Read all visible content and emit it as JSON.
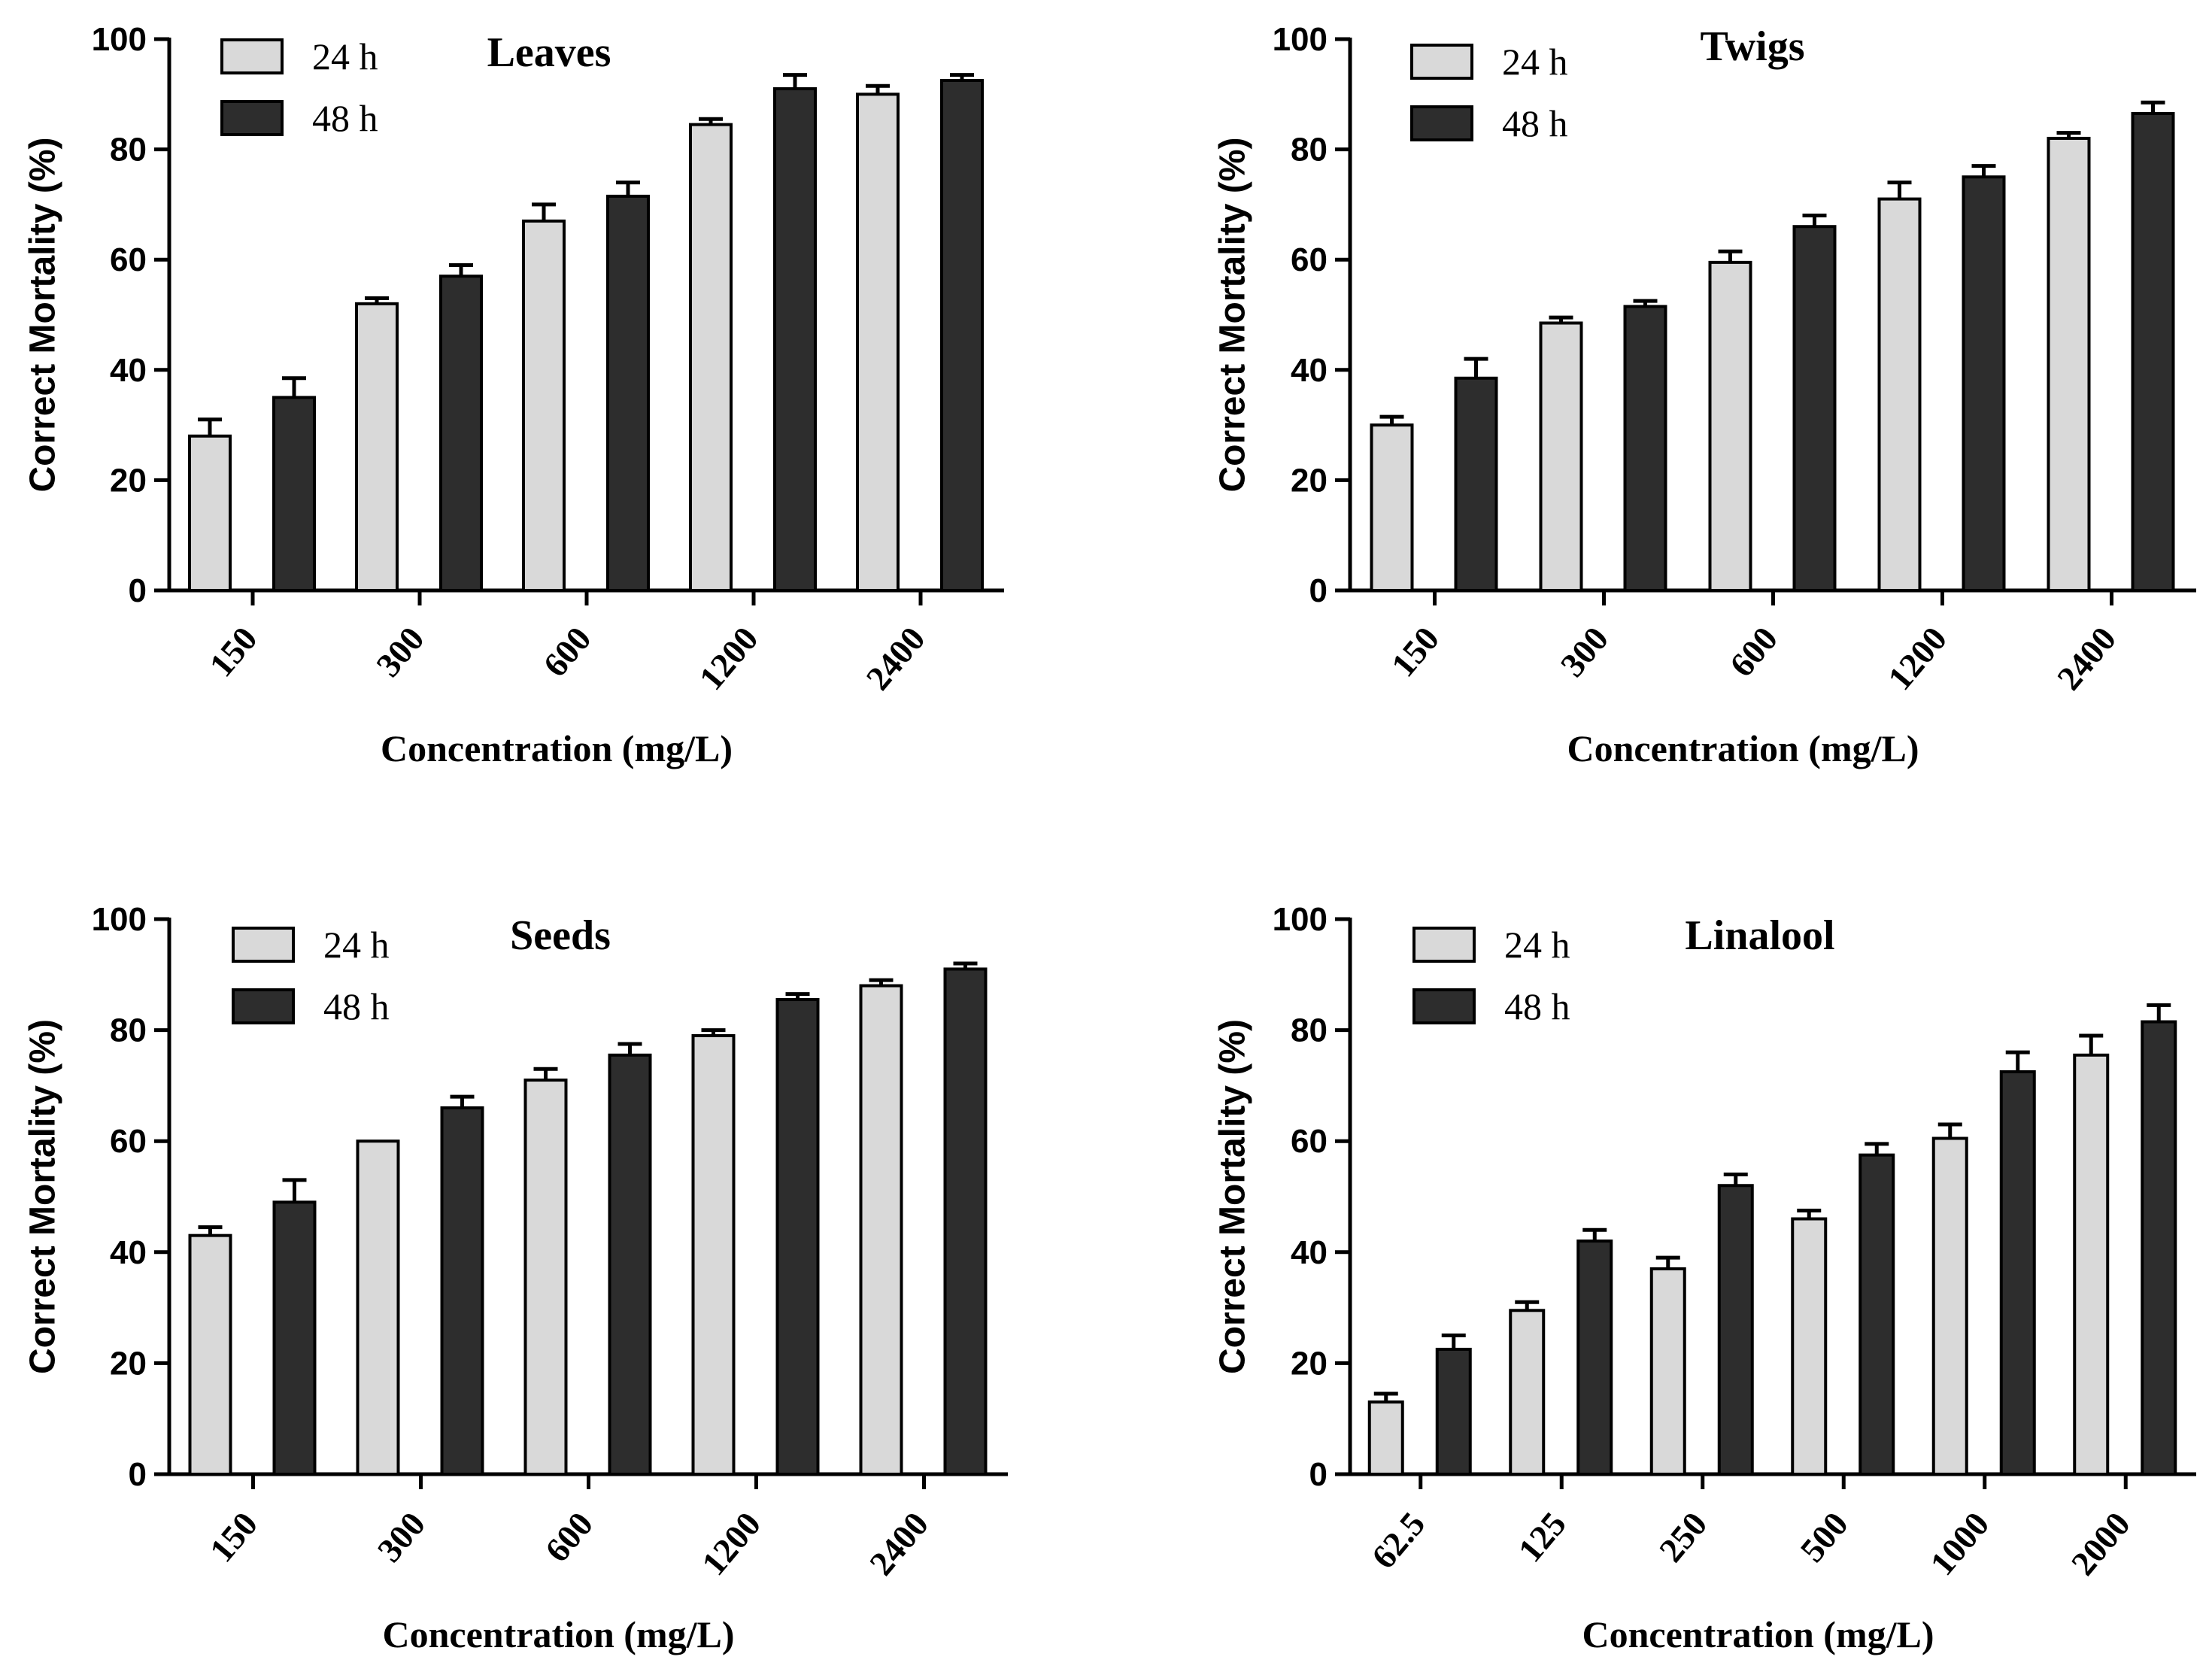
{
  "colors": {
    "series_24h": "#d9d9d9",
    "series_48h": "#2d2d2d",
    "axis": "#000000"
  },
  "chart_data": [
    {
      "type": "bar",
      "title": "Leaves",
      "xlabel": "Concentration (mg/L)",
      "ylabel": "Correct Mortality (%)",
      "ylim": [
        0,
        100
      ],
      "yticks": [
        "0",
        "20",
        "40",
        "60",
        "80",
        "100"
      ],
      "legend_position": "top-left",
      "categories": [
        "150",
        "300",
        "600",
        "1200",
        "2400"
      ],
      "series": [
        {
          "name": "24 h",
          "values": [
            28,
            52,
            67,
            84.5,
            90
          ],
          "errors": [
            3,
            1,
            3,
            1,
            1.5
          ]
        },
        {
          "name": "48 h",
          "values": [
            35,
            57,
            71.5,
            91,
            92.5
          ],
          "errors": [
            3.5,
            2,
            2.5,
            2.5,
            1
          ]
        }
      ]
    },
    {
      "type": "bar",
      "title": "Twigs",
      "xlabel": "Concentration (mg/L)",
      "ylabel": "Correct Mortality (%)",
      "ylim": [
        0,
        100
      ],
      "yticks": [
        "0",
        "20",
        "40",
        "60",
        "80",
        "100"
      ],
      "legend_position": "top-left",
      "categories": [
        "150",
        "300",
        "600",
        "1200",
        "2400"
      ],
      "series": [
        {
          "name": "24 h",
          "values": [
            30,
            48.5,
            59.5,
            71,
            82
          ],
          "errors": [
            1.5,
            1,
            2,
            3,
            1
          ]
        },
        {
          "name": "48 h",
          "values": [
            38.5,
            51.5,
            66,
            75,
            86.5
          ],
          "errors": [
            3.5,
            1,
            2,
            2,
            2
          ]
        }
      ]
    },
    {
      "type": "bar",
      "title": "Seeds",
      "xlabel": "Concentration (mg/L)",
      "ylabel": "Correct Mortality (%)",
      "ylim": [
        0,
        100
      ],
      "yticks": [
        "0",
        "20",
        "40",
        "60",
        "80",
        "100"
      ],
      "legend_position": "top-left",
      "categories": [
        "150",
        "300",
        "600",
        "1200",
        "2400"
      ],
      "series": [
        {
          "name": "24 h",
          "values": [
            43,
            60,
            71,
            79,
            88
          ],
          "errors": [
            1.5,
            0,
            2,
            1,
            1
          ]
        },
        {
          "name": "48 h",
          "values": [
            49,
            66,
            75.5,
            85.5,
            91
          ],
          "errors": [
            4,
            2,
            2,
            1,
            1
          ]
        }
      ]
    },
    {
      "type": "bar",
      "title": "Linalool",
      "xlabel": "Concentration (mg/L)",
      "ylabel": "Correct Mortality (%)",
      "ylim": [
        0,
        100
      ],
      "yticks": [
        "0",
        "20",
        "40",
        "60",
        "80",
        "100"
      ],
      "legend_position": "top-left",
      "categories": [
        "62.5",
        "125",
        "250",
        "500",
        "1000",
        "2000"
      ],
      "series": [
        {
          "name": "24 h",
          "values": [
            13,
            29.5,
            37,
            46,
            60.5,
            75.5
          ],
          "errors": [
            1.5,
            1.5,
            2,
            1.5,
            2.5,
            3.5
          ]
        },
        {
          "name": "48 h",
          "values": [
            22.5,
            42,
            52,
            57.5,
            72.5,
            81.5
          ],
          "errors": [
            2.5,
            2,
            2,
            2,
            3.5,
            3
          ]
        }
      ]
    }
  ]
}
